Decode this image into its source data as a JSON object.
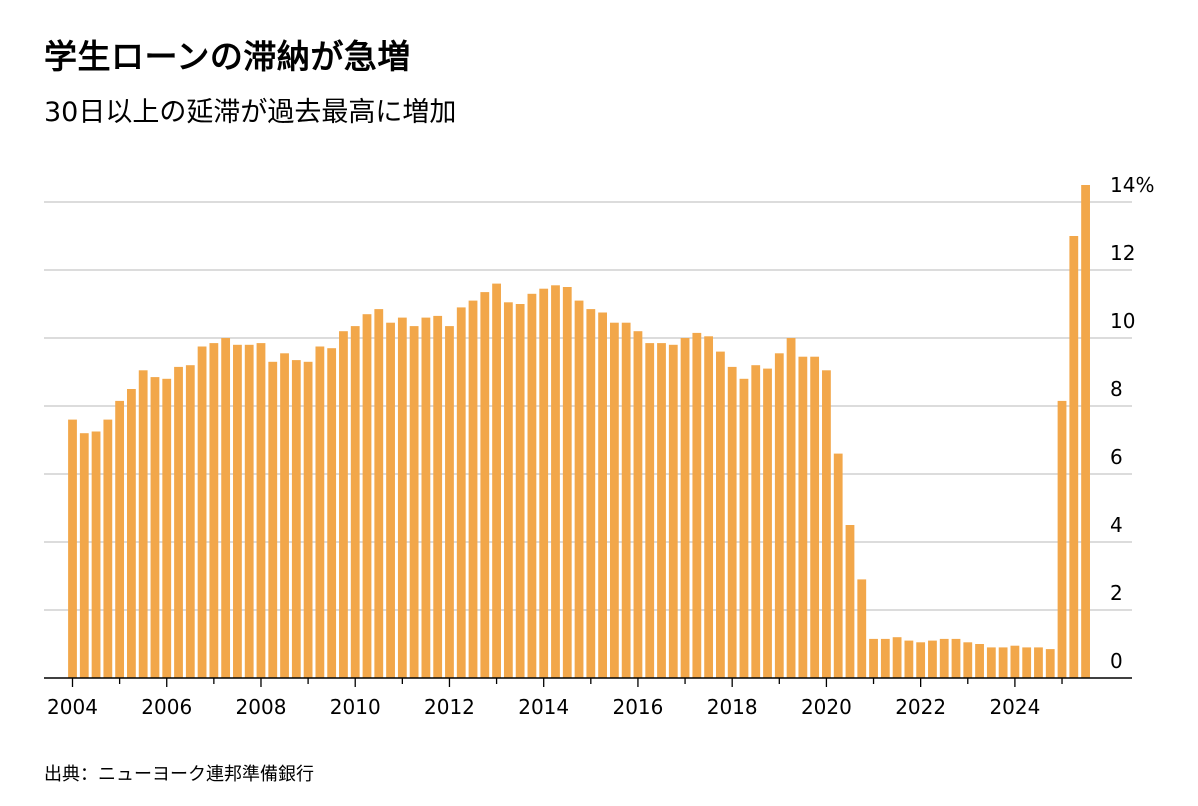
{
  "title": "学生ローンの滞納が急増",
  "subtitle": "30日以上の延滞が過去最高に増加",
  "source": "出典：ニューヨーク連邦準備銀行",
  "colors": {
    "bar": "#F2A74A",
    "grid": "#c8c8c8",
    "axis": "#000000"
  },
  "chart_data": {
    "type": "bar",
    "title": "学生ローンの滞納が急増",
    "subtitle": "30日以上の延滞が過去最高に増加",
    "ylabel": "%",
    "ylim": [
      0,
      14
    ],
    "yticks": [
      0,
      2,
      4,
      6,
      8,
      10,
      12,
      14
    ],
    "ytick_labels": [
      "0",
      "2",
      "4",
      "6",
      "8",
      "10",
      "12",
      "14%"
    ],
    "y_axis_position": "right",
    "xtick_labels": [
      "2004",
      "2006",
      "2008",
      "2010",
      "2012",
      "2014",
      "2016",
      "2018",
      "2020",
      "2022",
      "2024"
    ],
    "x_start": 2004.0,
    "period": "quarterly",
    "values": [
      7.6,
      7.2,
      7.25,
      7.6,
      8.15,
      8.5,
      9.05,
      8.85,
      8.8,
      9.15,
      9.2,
      9.75,
      9.85,
      10.0,
      9.8,
      9.8,
      9.85,
      9.3,
      9.55,
      9.35,
      9.3,
      9.75,
      9.7,
      10.2,
      10.35,
      10.7,
      10.85,
      10.45,
      10.6,
      10.35,
      10.6,
      10.65,
      10.35,
      10.9,
      11.1,
      11.35,
      11.6,
      11.05,
      11.0,
      11.3,
      11.45,
      11.55,
      11.5,
      11.1,
      10.85,
      10.75,
      10.45,
      10.45,
      10.2,
      9.85,
      9.85,
      9.8,
      10.0,
      10.15,
      10.05,
      9.6,
      9.15,
      8.8,
      9.2,
      9.1,
      9.55,
      10.0,
      9.45,
      9.45,
      9.05,
      6.6,
      4.5,
      2.9,
      1.15,
      1.15,
      1.2,
      1.1,
      1.05,
      1.1,
      1.15,
      1.15,
      1.05,
      1.0,
      0.9,
      0.9,
      0.95,
      0.9,
      0.9,
      0.85,
      8.15,
      13.0,
      14.5
    ]
  }
}
